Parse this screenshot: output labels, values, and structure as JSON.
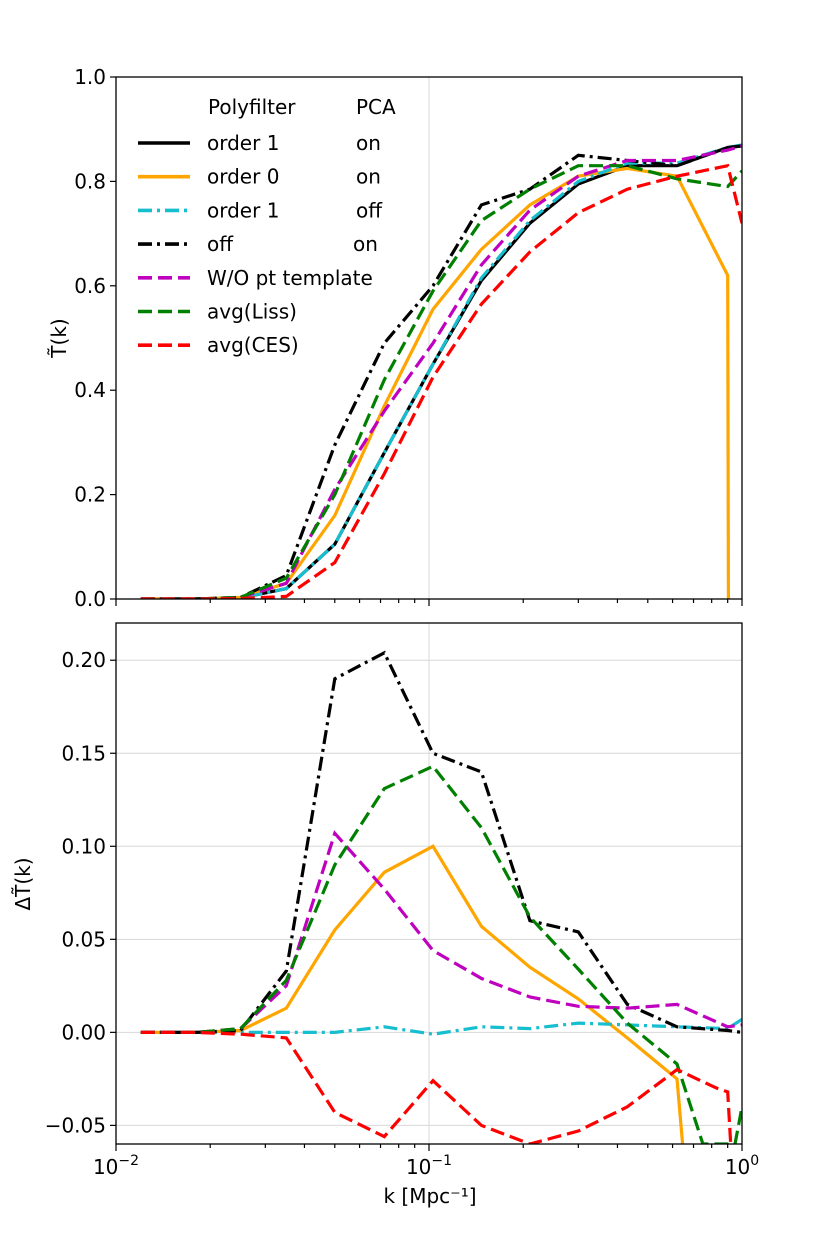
{
  "chart_data": [
    {
      "type": "line",
      "panel": "top",
      "ylabel": "T̃(k)",
      "xlabel": "",
      "xscale": "log",
      "xlim": [
        0.01,
        1.0
      ],
      "ylim": [
        0.0,
        1.0
      ],
      "yticks": [
        0.0,
        0.2,
        0.4,
        0.6,
        0.8,
        1.0
      ],
      "ytick_labels": [
        "0.0",
        "0.2",
        "0.4",
        "0.6",
        "0.8",
        "1.0"
      ],
      "grid": "x=0.1 only",
      "legend": {
        "placement": "upper-left",
        "header_col1": "Polyfilter",
        "header_col2": "PCA"
      },
      "series": [
        {
          "key": "s1",
          "name": "order 1",
          "pca": "on",
          "color": "#000000",
          "style": "solid",
          "x": [
            0.012,
            0.018,
            0.025,
            0.035,
            0.05,
            0.072,
            0.103,
            0.147,
            0.21,
            0.3,
            0.43,
            0.62,
            0.9,
            1.0
          ],
          "values": [
            0.0,
            0.0,
            0.002,
            0.02,
            0.105,
            0.28,
            0.45,
            0.61,
            0.72,
            0.795,
            0.83,
            0.83,
            0.865,
            0.868
          ]
        },
        {
          "key": "s2",
          "name": "order 0",
          "pca": "on",
          "color": "#ffa500",
          "style": "solid",
          "x": [
            0.012,
            0.018,
            0.025,
            0.035,
            0.05,
            0.072,
            0.103,
            0.147,
            0.21,
            0.3,
            0.43,
            0.62,
            0.9,
            0.905
          ],
          "values": [
            0.0,
            0.0,
            0.003,
            0.03,
            0.16,
            0.37,
            0.555,
            0.67,
            0.755,
            0.81,
            0.825,
            0.81,
            0.62,
            0.0
          ]
        },
        {
          "key": "s3",
          "name": "order 1",
          "pca": "off",
          "color": "#17becf",
          "style": "dashdot",
          "x": [
            0.012,
            0.018,
            0.025,
            0.035,
            0.05,
            0.072,
            0.103,
            0.147,
            0.21,
            0.3,
            0.43,
            0.62,
            0.9,
            1.0
          ],
          "values": [
            0.0,
            0.0,
            0.002,
            0.02,
            0.105,
            0.28,
            0.45,
            0.615,
            0.725,
            0.8,
            0.835,
            0.835,
            0.865,
            0.87
          ]
        },
        {
          "key": "s4",
          "name": "off",
          "pca": "on",
          "color": "#000000",
          "style": "dashdot",
          "x": [
            0.012,
            0.018,
            0.025,
            0.035,
            0.05,
            0.072,
            0.103,
            0.147,
            0.21,
            0.3,
            0.43,
            0.62,
            0.9,
            1.0
          ],
          "values": [
            0.0,
            0.0,
            0.003,
            0.045,
            0.295,
            0.49,
            0.6,
            0.755,
            0.785,
            0.85,
            0.84,
            0.83,
            0.865,
            0.868
          ]
        },
        {
          "key": "s5",
          "name": "W/O pt template",
          "pca": "",
          "color": "#bf00bf",
          "style": "dashed",
          "x": [
            0.012,
            0.018,
            0.025,
            0.035,
            0.05,
            0.072,
            0.103,
            0.147,
            0.21,
            0.3,
            0.43,
            0.62,
            0.9,
            1.0
          ],
          "values": [
            0.0,
            0.0,
            0.003,
            0.03,
            0.21,
            0.36,
            0.49,
            0.64,
            0.745,
            0.81,
            0.84,
            0.84,
            0.86,
            0.868
          ]
        },
        {
          "key": "s6",
          "name": "avg(Liss)",
          "pca": "",
          "color": "#008000",
          "style": "dashed",
          "x": [
            0.012,
            0.018,
            0.025,
            0.035,
            0.05,
            0.072,
            0.103,
            0.147,
            0.21,
            0.3,
            0.43,
            0.62,
            0.9,
            1.0
          ],
          "values": [
            0.0,
            0.0,
            0.003,
            0.04,
            0.2,
            0.42,
            0.59,
            0.725,
            0.785,
            0.83,
            0.83,
            0.805,
            0.79,
            0.82
          ]
        },
        {
          "key": "s7",
          "name": "avg(CES)",
          "pca": "",
          "color": "#ff0000",
          "style": "dashed",
          "x": [
            0.012,
            0.018,
            0.025,
            0.035,
            0.05,
            0.072,
            0.103,
            0.147,
            0.21,
            0.3,
            0.43,
            0.62,
            0.9,
            1.0
          ],
          "values": [
            0.0,
            0.0,
            0.001,
            0.005,
            0.07,
            0.24,
            0.425,
            0.565,
            0.665,
            0.74,
            0.785,
            0.81,
            0.83,
            0.72
          ]
        }
      ]
    },
    {
      "type": "line",
      "panel": "bottom",
      "ylabel": "ΔT̃(k)",
      "xlabel": "k [Mpc⁻¹]",
      "xscale": "log",
      "xlim": [
        0.01,
        1.0
      ],
      "ylim": [
        -0.06,
        0.22
      ],
      "xticks": [
        0.01,
        0.1,
        1.0
      ],
      "xtick_bases": [
        "10",
        "10",
        "10"
      ],
      "xtick_exponents": [
        "−2",
        "−1",
        "0"
      ],
      "yticks": [
        -0.05,
        0.0,
        0.05,
        0.1,
        0.15,
        0.2
      ],
      "ytick_labels": [
        "−0.05",
        "0.00",
        "0.05",
        "0.10",
        "0.15",
        "0.20"
      ],
      "grid": "horizontal at y ticks, vertical at x=0.1",
      "series": [
        {
          "key": "s2",
          "name": "order 0",
          "color": "#ffa500",
          "style": "solid",
          "x": [
            0.012,
            0.018,
            0.025,
            0.035,
            0.05,
            0.072,
            0.103,
            0.147,
            0.21,
            0.3,
            0.43,
            0.62,
            0.65
          ],
          "values": [
            0.0,
            0.0,
            0.001,
            0.013,
            0.055,
            0.086,
            0.1,
            0.057,
            0.035,
            0.018,
            -0.003,
            -0.025,
            -0.065
          ]
        },
        {
          "key": "s3",
          "name": "order 1 (PCA off)",
          "color": "#17becf",
          "style": "dashdot",
          "x": [
            0.012,
            0.018,
            0.025,
            0.035,
            0.05,
            0.072,
            0.103,
            0.147,
            0.21,
            0.3,
            0.43,
            0.62,
            0.9,
            1.0
          ],
          "values": [
            0.0,
            0.0,
            0.0,
            0.0,
            0.0,
            0.003,
            -0.001,
            0.003,
            0.002,
            0.005,
            0.004,
            0.003,
            0.002,
            0.007
          ]
        },
        {
          "key": "s4",
          "name": "off (PCA on)",
          "color": "#000000",
          "style": "dashdot",
          "x": [
            0.012,
            0.018,
            0.025,
            0.035,
            0.05,
            0.072,
            0.103,
            0.147,
            0.21,
            0.3,
            0.43,
            0.62,
            0.9,
            1.0
          ],
          "values": [
            0.0,
            0.0,
            0.001,
            0.033,
            0.19,
            0.204,
            0.15,
            0.14,
            0.06,
            0.054,
            0.015,
            0.003,
            0.001,
            0.0
          ]
        },
        {
          "key": "s5",
          "name": "W/O pt template",
          "color": "#bf00bf",
          "style": "dashed",
          "x": [
            0.012,
            0.018,
            0.025,
            0.035,
            0.05,
            0.072,
            0.103,
            0.147,
            0.21,
            0.3,
            0.43,
            0.62,
            0.9,
            1.0
          ],
          "values": [
            0.0,
            0.0,
            0.002,
            0.025,
            0.107,
            0.077,
            0.044,
            0.029,
            0.019,
            0.014,
            0.013,
            0.015,
            0.003,
            0.004
          ]
        },
        {
          "key": "s6",
          "name": "avg(Liss)",
          "color": "#008000",
          "style": "dashed",
          "x": [
            0.012,
            0.018,
            0.025,
            0.035,
            0.05,
            0.072,
            0.103,
            0.147,
            0.21,
            0.3,
            0.43,
            0.62,
            0.75,
            0.95,
            1.0
          ],
          "values": [
            0.0,
            0.0,
            0.002,
            0.028,
            0.09,
            0.131,
            0.143,
            0.11,
            0.062,
            0.034,
            0.005,
            -0.017,
            -0.06,
            -0.06,
            -0.04
          ]
        },
        {
          "key": "s7",
          "name": "avg(CES)",
          "color": "#ff0000",
          "style": "dashed",
          "x": [
            0.012,
            0.018,
            0.025,
            0.035,
            0.05,
            0.072,
            0.103,
            0.147,
            0.21,
            0.3,
            0.43,
            0.62,
            0.83,
            0.9,
            0.92
          ],
          "values": [
            0.0,
            0.0,
            -0.001,
            -0.003,
            -0.043,
            -0.056,
            -0.026,
            -0.05,
            -0.06,
            -0.053,
            -0.04,
            -0.02,
            -0.03,
            -0.032,
            -0.06
          ]
        }
      ]
    }
  ]
}
